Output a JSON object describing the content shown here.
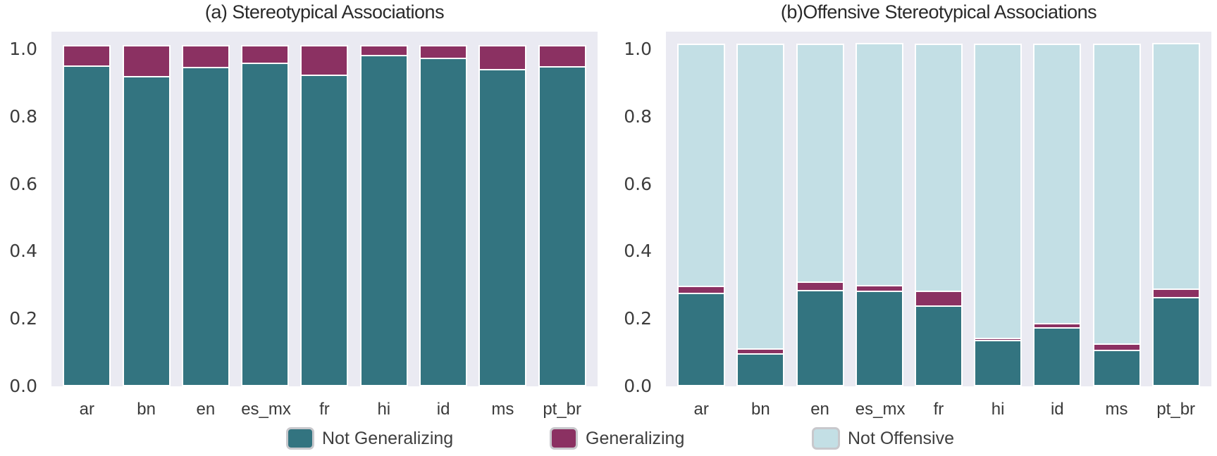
{
  "figure": {
    "background": "#ffffff",
    "plot_background": "#eaeaf2",
    "bar_edge_color": "#ffffff",
    "colors": {
      "not_generalizing": "#337480",
      "generalizing": "#8b3162",
      "not_offensive": "#c3dfe5"
    }
  },
  "legend": {
    "items": [
      {
        "label": "Not Generalizing",
        "color": "#337480"
      },
      {
        "label": "Generalizing",
        "color": "#8b3162"
      },
      {
        "label": "Not Offensive",
        "color": "#c3dfe5"
      }
    ]
  },
  "chart_data": [
    {
      "type": "bar",
      "stacked": true,
      "title": "(a) Stereotypical Associations",
      "categories": [
        "ar",
        "bn",
        "en",
        "es_mx",
        "fr",
        "hi",
        "id",
        "ms",
        "pt_br"
      ],
      "series": [
        {
          "name": "Not Generalizing",
          "color": "#337480",
          "values": [
            0.943,
            0.912,
            0.94,
            0.952,
            0.916,
            0.975,
            0.967,
            0.933,
            0.941
          ]
        },
        {
          "name": "Generalizing",
          "color": "#8b3162",
          "values": [
            0.057,
            0.088,
            0.06,
            0.048,
            0.084,
            0.025,
            0.033,
            0.067,
            0.059
          ]
        }
      ],
      "ylim": [
        0,
        1.05
      ],
      "yticks": [
        0.0,
        0.2,
        0.4,
        0.6,
        0.8,
        1.0
      ],
      "ytick_labels": [
        "0.0",
        "0.2",
        "0.4",
        "0.6",
        "0.8",
        "1.0"
      ],
      "grid": false,
      "legend_position": "bottom-center-shared"
    },
    {
      "type": "bar",
      "stacked": true,
      "title": "(b)Offensive Stereotypical Associations",
      "categories": [
        "ar",
        "bn",
        "en",
        "es_mx",
        "fr",
        "hi",
        "id",
        "ms",
        "pt_br"
      ],
      "series": [
        {
          "name": "Not Generalizing",
          "color": "#337480",
          "values": [
            0.27,
            0.09,
            0.278,
            0.275,
            0.232,
            0.13,
            0.167,
            0.1,
            0.256
          ]
        },
        {
          "name": "Generalizing",
          "color": "#8b3162",
          "values": [
            0.016,
            0.01,
            0.02,
            0.012,
            0.04,
            0.002,
            0.008,
            0.014,
            0.02
          ]
        },
        {
          "name": "Not Offensive",
          "color": "#c3dfe5",
          "values": [
            0.714,
            0.9,
            0.702,
            0.713,
            0.728,
            0.868,
            0.825,
            0.886,
            0.724
          ]
        }
      ],
      "ylim": [
        0,
        1.05
      ],
      "yticks": [
        0.0,
        0.2,
        0.4,
        0.6,
        0.8,
        1.0
      ],
      "ytick_labels": [
        "0.0",
        "0.2",
        "0.4",
        "0.6",
        "0.8",
        "1.0"
      ],
      "grid": false,
      "legend_position": "bottom-center-shared"
    }
  ]
}
